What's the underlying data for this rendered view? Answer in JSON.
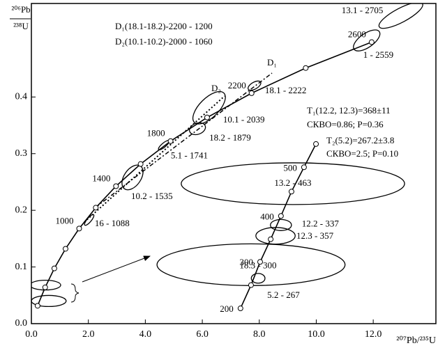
{
  "chart_data": {
    "type": "concordia",
    "y_label_numerator": "²⁰⁶Pb",
    "y_label_denominator": "²³⁸U",
    "x_label": "²⁰⁷Pb/²³⁵U",
    "xlim": [
      0,
      14.2
    ],
    "ylim": [
      0,
      0.565
    ],
    "xticks": [
      {
        "value": 0,
        "label": "0.0"
      },
      {
        "value": 2,
        "label": "2.0"
      },
      {
        "value": 4,
        "label": "4.0"
      },
      {
        "value": 6,
        "label": "6.0"
      },
      {
        "value": 8,
        "label": "8.0"
      },
      {
        "value": 10,
        "label": "10.0"
      },
      {
        "value": 12,
        "label": "12.0"
      }
    ],
    "yticks": [
      {
        "value": 0,
        "label": "0.0"
      },
      {
        "value": 0.1,
        "label": "0.1"
      },
      {
        "value": 0.2,
        "label": "0.2"
      },
      {
        "value": 0.3,
        "label": "0.3"
      },
      {
        "value": 0.4,
        "label": "0.4"
      }
    ],
    "concordia": {
      "x": [
        0.2177,
        0.4828,
        0.8056,
        1.1988,
        1.6774,
        2.2604,
        2.9701,
        3.8345,
        4.8867,
        6.1683,
        7.729,
        9.6295,
        11.944
      ],
      "y": [
        0.0315,
        0.064,
        0.0975,
        0.1321,
        0.1678,
        0.2046,
        0.2426,
        0.2817,
        0.3221,
        0.3638,
        0.4067,
        0.4511,
        0.4968
      ],
      "labels": [
        null,
        null,
        null,
        null,
        "1000",
        null,
        "1400",
        null,
        "1800",
        null,
        "2200",
        null,
        "2600"
      ]
    },
    "inset_concordia": {
      "x": [
        7.34,
        7.71,
        8.03,
        8.4,
        8.76,
        9.13,
        9.57,
        9.99
      ],
      "y": [
        0.027,
        0.068,
        0.109,
        0.149,
        0.19,
        0.233,
        0.276,
        0.317
      ],
      "labels": [
        "200",
        null,
        "300",
        null,
        "400",
        null,
        "500",
        null
      ]
    },
    "ellipses": [
      {
        "label": "13.1 - 2705",
        "x": 12.97,
        "y": 0.5442,
        "ex": 0.86,
        "ey": 0.0123,
        "angle": -28
      },
      {
        "label": "1 - 2559",
        "x": 11.77,
        "y": 0.4998,
        "ex": 0.54,
        "ey": 0.0123,
        "angle": -35
      },
      {
        "label": "18.1 - 2222",
        "x": 7.83,
        "y": 0.42,
        "ex": 0.25,
        "ey": 0.006,
        "angle": -30
      },
      {
        "label": "10.1 - 2039",
        "x": 6.24,
        "y": 0.381,
        "ex": 0.73,
        "ey": 0.017,
        "angle": -45
      },
      {
        "label": "18.2 - 1879",
        "x": 5.83,
        "y": 0.344,
        "ex": 0.29,
        "ey": 0.0098,
        "angle": -20
      },
      {
        "label": "5.1 - 1741",
        "x": 4.65,
        "y": 0.315,
        "ex": 0.24,
        "ey": 0.0037,
        "angle": -40
      },
      {
        "label": "10.2 - 1535",
        "x": 3.55,
        "y": 0.258,
        "ex": 0.49,
        "ey": 0.0147,
        "angle": -55
      },
      {
        "label": "16 - 1088",
        "x": 2.03,
        "y": 0.183,
        "ex": 0.24,
        "ey": 0.0037,
        "angle": -50
      },
      {
        "label": null,
        "x": 0.49,
        "y": 0.068,
        "ex": 0.54,
        "ey": 0.0086,
        "angle": 0
      },
      {
        "label": null,
        "x": 0.61,
        "y": 0.04,
        "ex": 0.61,
        "ey": 0.0098,
        "angle": 0
      },
      {
        "label": "13.2 - 463",
        "x": 9.18,
        "y": 0.247,
        "ex": 3.92,
        "ey": 0.0368,
        "angle": 0
      },
      {
        "label": "12.2 - 337",
        "x": 8.76,
        "y": 0.174,
        "ex": 0.37,
        "ey": 0.0098,
        "angle": 0
      },
      {
        "label": "12.3 - 357",
        "x": 8.57,
        "y": 0.155,
        "ex": 0.69,
        "ey": 0.0147,
        "angle": 0
      },
      {
        "label": "18.3 - 300",
        "x": 7.71,
        "y": 0.104,
        "ex": 3.3,
        "ey": 0.0368,
        "angle": 0
      },
      {
        "label": "5.2 - 267",
        "x": 7.96,
        "y": 0.08,
        "ex": 0.24,
        "ey": 0.0086,
        "angle": 0
      }
    ],
    "annotations": {
      "d1_line": "D₁(18.1-18.2)-2200 - 1200",
      "d2_line": "D₂(10.1-10.2)-2000 - 1060",
      "d1": "D₁",
      "d2": "D₂",
      "t1": "T₁(12.2, 12.3)=368±11",
      "t1_stats": "СКВО=0.86; P=0.36",
      "t2": "T₂(5.2)=267.2±3.8",
      "t2_stats": "СКВО=2.5; P=0.10"
    }
  }
}
